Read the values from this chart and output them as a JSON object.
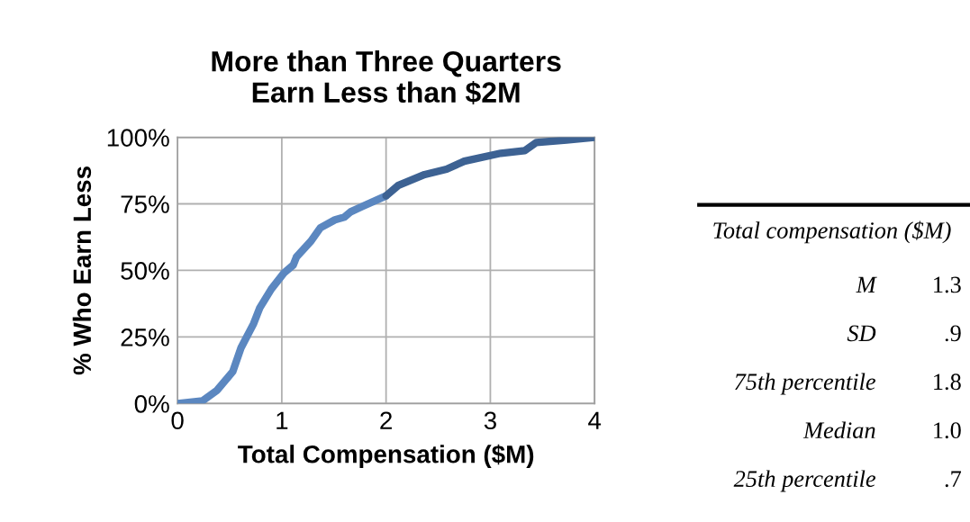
{
  "chart_data": [
    {
      "type": "line",
      "title": "More than Three Quarters\nEarn Less than $2M",
      "xlabel": "Total Compensation ($M)",
      "ylabel": "% Who Earn Less",
      "xlim": [
        0,
        4
      ],
      "xticks": [
        0,
        1,
        2,
        3,
        4
      ],
      "ylim": [
        0,
        100
      ],
      "yticks": [
        {
          "value": 0,
          "label": "0%"
        },
        {
          "value": 25,
          "label": "25%"
        },
        {
          "value": 50,
          "label": "50%"
        },
        {
          "value": 75,
          "label": "75%"
        },
        {
          "value": 100,
          "label": "100%"
        }
      ],
      "grid": true,
      "marker": "none",
      "line_style": "solid",
      "series": [
        {
          "color": "#5b87c0",
          "x": [
            0,
            0.24,
            0.38,
            0.53,
            0.61,
            0.73,
            0.79,
            0.9,
            1.02,
            1.11,
            1.14,
            1.28,
            1.37,
            1.51,
            1.6,
            1.66,
            1.77,
            2.0
          ],
          "values": [
            0,
            1,
            5,
            12,
            21,
            30,
            36,
            43,
            49,
            52,
            55,
            61,
            66,
            69,
            70,
            72,
            74,
            78
          ]
        },
        {
          "color": "#3d6293",
          "x": [
            2.0,
            2.12,
            2.37,
            2.58,
            2.75,
            3.1,
            3.33,
            3.44,
            3.73,
            4.0
          ],
          "values": [
            78,
            82,
            86,
            88,
            91,
            94,
            95,
            98,
            99,
            100
          ]
        }
      ]
    },
    {
      "type": "other",
      "title": "Total compensation ($M)",
      "annotations": [
        "M",
        "1.3",
        "SD",
        ".9",
        "75th percentile",
        "1.8",
        "Median",
        "1.0",
        "25th percentile",
        ".7"
      ]
    }
  ]
}
